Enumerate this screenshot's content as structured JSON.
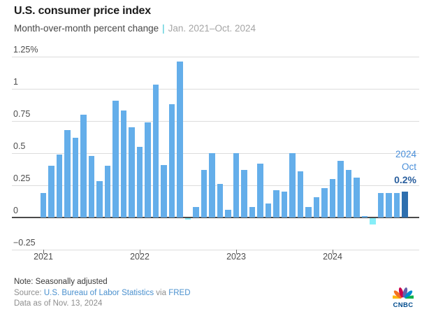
{
  "header": {
    "title": "U.S. consumer price index",
    "subtitle_measure": "Month-over-month percent change",
    "subtitle_separator": "|",
    "subtitle_range": "Jan. 2021–Oct. 2024"
  },
  "chart_data": {
    "type": "bar",
    "title": "U.S. consumer price index",
    "subtitle": "Month-over-month percent change",
    "period": "Jan. 2021–Oct. 2024",
    "ylabel": "percent change",
    "ylim": [
      -0.25,
      1.25
    ],
    "grid": true,
    "categories": [
      "Jan 2021",
      "Feb 2021",
      "Mar 2021",
      "Apr 2021",
      "May 2021",
      "Jun 2021",
      "Jul 2021",
      "Aug 2021",
      "Sep 2021",
      "Oct 2021",
      "Nov 2021",
      "Dec 2021",
      "Jan 2022",
      "Feb 2022",
      "Mar 2022",
      "Apr 2022",
      "May 2022",
      "Jun 2022",
      "Jul 2022",
      "Aug 2022",
      "Sep 2022",
      "Oct 2022",
      "Nov 2022",
      "Dec 2022",
      "Jan 2023",
      "Feb 2023",
      "Mar 2023",
      "Apr 2023",
      "May 2023",
      "Jun 2023",
      "Jul 2023",
      "Aug 2023",
      "Sep 2023",
      "Oct 2023",
      "Nov 2023",
      "Dec 2023",
      "Jan 2024",
      "Feb 2024",
      "Mar 2024",
      "Apr 2024",
      "May 2024",
      "Jun 2024",
      "Jul 2024",
      "Aug 2024",
      "Sep 2024",
      "Oct 2024"
    ],
    "values": [
      0.19,
      0.4,
      0.49,
      0.68,
      0.62,
      0.8,
      0.48,
      0.28,
      0.4,
      0.91,
      0.83,
      0.7,
      0.55,
      0.74,
      1.03,
      0.41,
      0.88,
      1.21,
      -0.01,
      0.08,
      0.37,
      0.5,
      0.26,
      0.06,
      0.5,
      0.37,
      0.08,
      0.42,
      0.11,
      0.21,
      0.2,
      0.5,
      0.36,
      0.08,
      0.16,
      0.23,
      0.3,
      0.44,
      0.37,
      0.31,
      0.01,
      -0.05,
      0.19,
      0.19,
      0.19,
      0.2
    ],
    "ytick_labels": [
      "1.25%",
      "1",
      "0.75",
      "0.5",
      "0.25",
      "0",
      "−0.25"
    ],
    "ytick_values": [
      1.25,
      1,
      0.75,
      0.5,
      0.25,
      0,
      -0.25
    ],
    "xtick_labels": [
      "2021",
      "2022",
      "2023",
      "2024"
    ],
    "legend": "none",
    "highlight": {
      "year": "2024",
      "month": "Oct",
      "value_label": "0.2%",
      "index": 45
    },
    "colors": {
      "bar": "#64aeea",
      "bar_negative": "#86eef8",
      "bar_highlight": "#2e6fae",
      "accent_teal": "#33c3d3",
      "zero_line": "#4b4b4b",
      "gridline": "#dcdcdc"
    }
  },
  "footer": {
    "note": "Note: Seasonally adjusted",
    "source_prefix": "Source:",
    "source_link_bls": "U.S. Bureau of Labor Statistics",
    "source_connector": "via",
    "source_link_fred": "FRED",
    "data_as_of": "Data as of Nov. 13, 2024",
    "logo_text": "CNBC",
    "logo_colors": {
      "feather_yellow": "#fcb711",
      "feather_orange": "#f37021",
      "feather_red": "#cc004c",
      "feather_purple": "#6460aa",
      "feather_blue": "#0089d0",
      "feather_green": "#0db14b",
      "wordmark": "#004b8d"
    }
  }
}
